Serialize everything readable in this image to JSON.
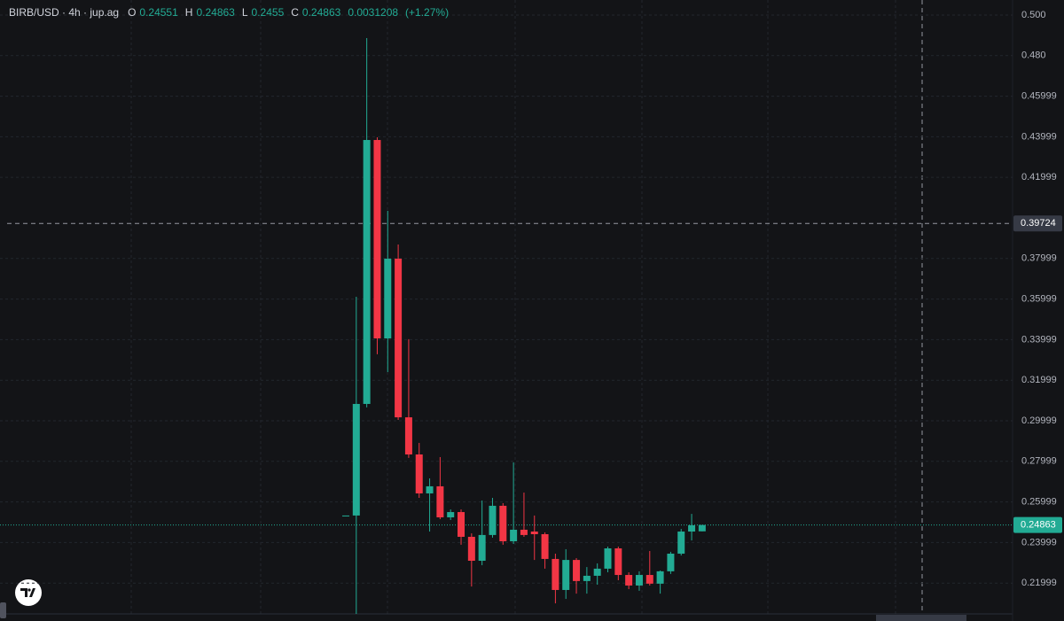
{
  "chart_data": {
    "type": "candlestick",
    "title": "BIRB/USD · 4h · jup.ag",
    "ohlc_header": [
      {
        "label": "O",
        "value": 0.24551
      },
      {
        "label": "H",
        "value": 0.24863
      },
      {
        "label": "L",
        "value": 0.2455
      },
      {
        "label": "C",
        "value": 0.24863
      }
    ],
    "change": 0.0031208,
    "change_percent": {
      "value": 1.27,
      "label": "(+1.27%)"
    },
    "open": [
      0.2533,
      0.2533,
      0.3083,
      0.4384,
      0.3406,
      0.3799,
      0.3017,
      0.2834,
      0.2642,
      0.2677,
      0.2524,
      0.255,
      0.2428,
      0.231,
      0.2437,
      0.2581,
      0.2406,
      0.2463,
      0.2454,
      0.2441,
      0.2319,
      0.2166,
      0.2314,
      0.221,
      0.2236,
      0.2271,
      0.2371,
      0.224,
      0.2188,
      0.224,
      0.2197,
      0.2258,
      0.2345,
      0.2454,
      0.24551
    ],
    "high": [
      0.2533,
      0.3611,
      0.4886,
      0.4397,
      0.4035,
      0.3869,
      0.3402,
      0.2891,
      0.2716,
      0.2821,
      0.2563,
      0.2563,
      0.2445,
      0.2607,
      0.262,
      0.2594,
      0.2795,
      0.2646,
      0.2533,
      0.245,
      0.2345,
      0.2367,
      0.2323,
      0.2279,
      0.2297,
      0.238,
      0.238,
      0.2253,
      0.2258,
      0.2358,
      0.2262,
      0.2354,
      0.2467,
      0.2541,
      0.24863
    ],
    "low": [
      0.2533,
      0.2048,
      0.3066,
      0.3328,
      0.324,
      0.3004,
      0.2817,
      0.262,
      0.2454,
      0.2515,
      0.2511,
      0.2389,
      0.2183,
      0.2288,
      0.2424,
      0.2389,
      0.2393,
      0.2428,
      0.2314,
      0.2271,
      0.21,
      0.2122,
      0.2148,
      0.2148,
      0.2192,
      0.2253,
      0.2214,
      0.217,
      0.2162,
      0.2188,
      0.2148,
      0.2245,
      0.2336,
      0.241,
      0.2455
    ],
    "close": [
      0.2533,
      0.3083,
      0.4384,
      0.3406,
      0.3799,
      0.3017,
      0.2834,
      0.2642,
      0.2677,
      0.2524,
      0.255,
      0.2428,
      0.231,
      0.2437,
      0.2581,
      0.2406,
      0.2463,
      0.2437,
      0.2441,
      0.2319,
      0.2166,
      0.2314,
      0.221,
      0.2236,
      0.2271,
      0.2371,
      0.224,
      0.2188,
      0.224,
      0.2197,
      0.2258,
      0.2345,
      0.2454,
      0.2485,
      0.24863
    ],
    "up_color": "#22ab94",
    "down_color": "#f23645",
    "ylim": [
      0.2048,
      0.5074
    ],
    "yticks": [
      {
        "value": 0.5,
        "label": "0.500"
      },
      {
        "value": 0.48,
        "label": "0.480"
      },
      0.45999,
      0.43999,
      0.41999,
      0.37999,
      0.35999,
      0.33999,
      0.31999,
      0.29999,
      0.27999,
      0.25999,
      0.23999,
      0.21999
    ],
    "grid": true,
    "crosshair": 0.39724,
    "last_price": 0.24863
  }
}
